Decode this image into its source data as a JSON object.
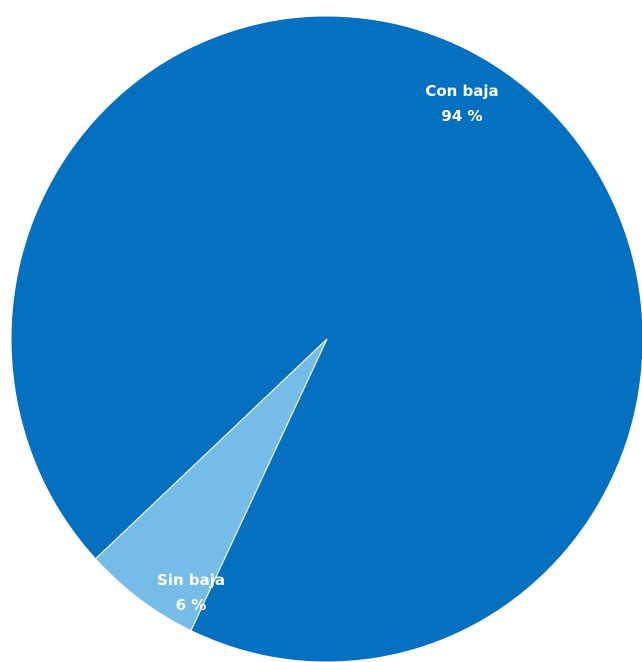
{
  "chart_data": {
    "type": "pie",
    "categories": [
      "Con baja",
      "Sin baja"
    ],
    "values": [
      94,
      6
    ],
    "colors": [
      "#0570bf",
      "#76bce9"
    ],
    "data_labels": [
      {
        "name": "Con baja",
        "value_label": "94 %"
      },
      {
        "name": "Sin baja",
        "value_label": "6 %"
      }
    ]
  }
}
